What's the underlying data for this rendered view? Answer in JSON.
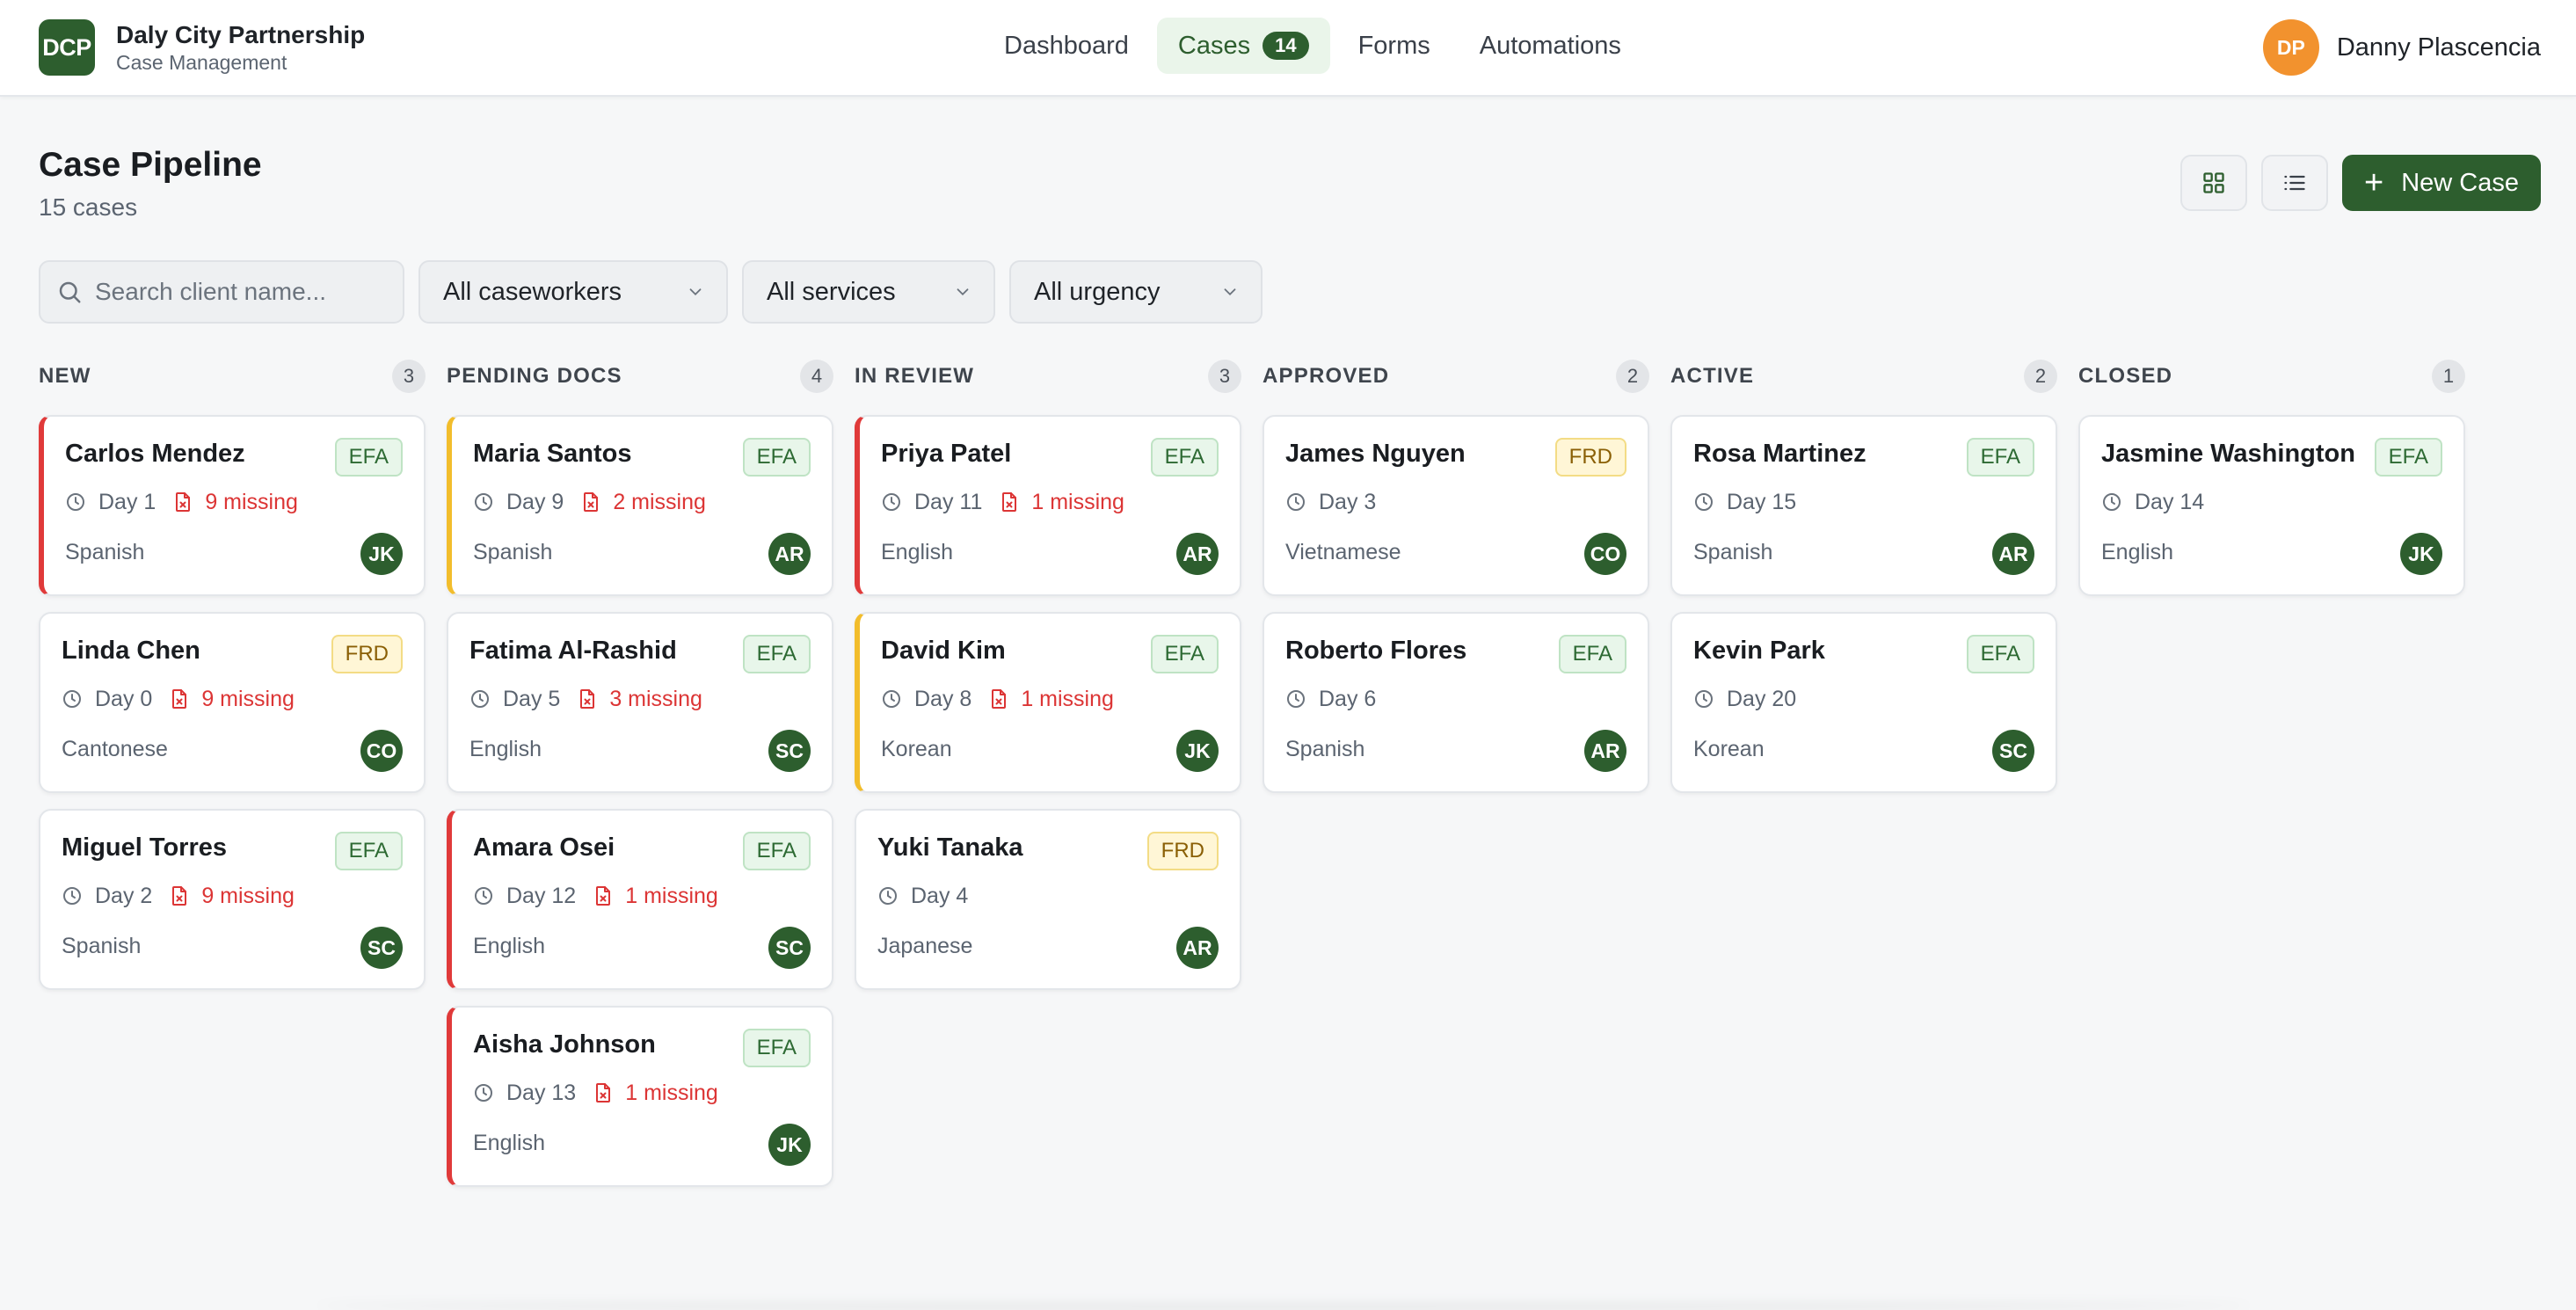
{
  "org": {
    "logo": "DCP",
    "name": "Daly City Partnership",
    "subtitle": "Case Management"
  },
  "nav": {
    "items": [
      {
        "label": "Dashboard"
      },
      {
        "label": "Cases",
        "count": "14",
        "active": true
      },
      {
        "label": "Forms"
      },
      {
        "label": "Automations"
      }
    ]
  },
  "user": {
    "initials": "DP",
    "name": "Danny Plascencia"
  },
  "page": {
    "title": "Case Pipeline",
    "subtitle": "15 cases",
    "new_case_label": "New Case"
  },
  "filters": {
    "search_placeholder": "Search client name...",
    "caseworker": "All caseworkers",
    "service": "All services",
    "urgency": "All urgency"
  },
  "colors": {
    "brand": "#2d5e2e",
    "urgent": "#e03a3a",
    "warning": "#f2bd2c",
    "avatar_user": "#f2922e"
  },
  "columns": [
    {
      "title": "NEW",
      "count": "3",
      "cards": [
        {
          "name": "Carlos Mendez",
          "service": "EFA",
          "day": "Day 1",
          "missing": "9 missing",
          "language": "Spanish",
          "caseworker": "JK",
          "urgency": "red"
        },
        {
          "name": "Linda Chen",
          "service": "FRD",
          "day": "Day 0",
          "missing": "9 missing",
          "language": "Cantonese",
          "caseworker": "CO",
          "urgency": "none"
        },
        {
          "name": "Miguel Torres",
          "service": "EFA",
          "day": "Day 2",
          "missing": "9 missing",
          "language": "Spanish",
          "caseworker": "SC",
          "urgency": "none"
        }
      ]
    },
    {
      "title": "PENDING DOCS",
      "count": "4",
      "cards": [
        {
          "name": "Maria Santos",
          "service": "EFA",
          "day": "Day 9",
          "missing": "2 missing",
          "language": "Spanish",
          "caseworker": "AR",
          "urgency": "yellow"
        },
        {
          "name": "Fatima Al-Rashid",
          "service": "EFA",
          "day": "Day 5",
          "missing": "3 missing",
          "language": "English",
          "caseworker": "SC",
          "urgency": "none"
        },
        {
          "name": "Amara Osei",
          "service": "EFA",
          "day": "Day 12",
          "missing": "1 missing",
          "language": "English",
          "caseworker": "SC",
          "urgency": "red"
        },
        {
          "name": "Aisha Johnson",
          "service": "EFA",
          "day": "Day 13",
          "missing": "1 missing",
          "language": "English",
          "caseworker": "JK",
          "urgency": "red"
        }
      ]
    },
    {
      "title": "IN REVIEW",
      "count": "3",
      "cards": [
        {
          "name": "Priya Patel",
          "service": "EFA",
          "day": "Day 11",
          "missing": "1 missing",
          "language": "English",
          "caseworker": "AR",
          "urgency": "red"
        },
        {
          "name": "David Kim",
          "service": "EFA",
          "day": "Day 8",
          "missing": "1 missing",
          "language": "Korean",
          "caseworker": "JK",
          "urgency": "yellow"
        },
        {
          "name": "Yuki Tanaka",
          "service": "FRD",
          "day": "Day 4",
          "missing": "",
          "language": "Japanese",
          "caseworker": "AR",
          "urgency": "none"
        }
      ]
    },
    {
      "title": "APPROVED",
      "count": "2",
      "cards": [
        {
          "name": "James Nguyen",
          "service": "FRD",
          "day": "Day 3",
          "missing": "",
          "language": "Vietnamese",
          "caseworker": "CO",
          "urgency": "none"
        },
        {
          "name": "Roberto Flores",
          "service": "EFA",
          "day": "Day 6",
          "missing": "",
          "language": "Spanish",
          "caseworker": "AR",
          "urgency": "none"
        }
      ]
    },
    {
      "title": "ACTIVE",
      "count": "2",
      "cards": [
        {
          "name": "Rosa Martinez",
          "service": "EFA",
          "day": "Day 15",
          "missing": "",
          "language": "Spanish",
          "caseworker": "AR",
          "urgency": "none"
        },
        {
          "name": "Kevin Park",
          "service": "EFA",
          "day": "Day 20",
          "missing": "",
          "language": "Korean",
          "caseworker": "SC",
          "urgency": "none"
        }
      ]
    },
    {
      "title": "CLOSED",
      "count": "1",
      "cards": [
        {
          "name": "Jasmine Washington",
          "service": "EFA",
          "day": "Day 14",
          "missing": "",
          "language": "English",
          "caseworker": "JK",
          "urgency": "none"
        }
      ]
    }
  ]
}
